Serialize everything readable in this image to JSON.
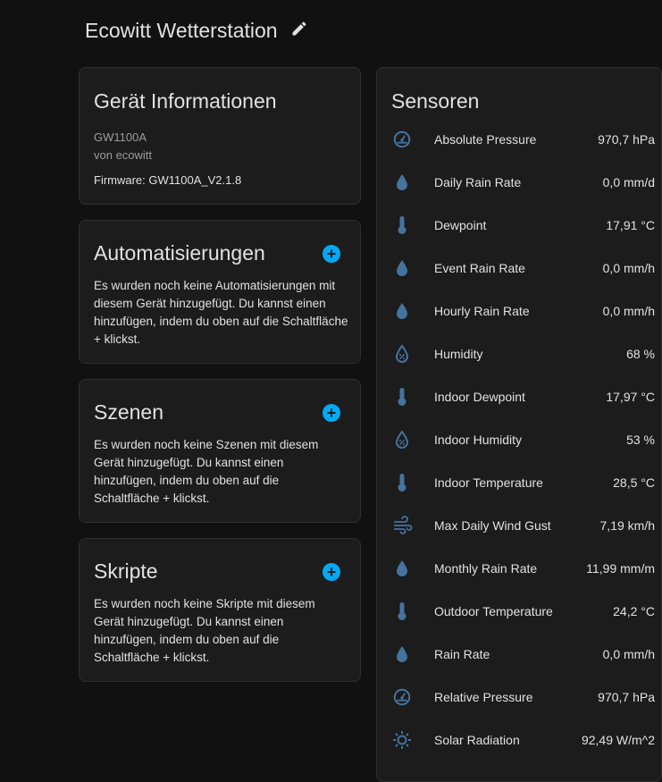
{
  "header": {
    "title": "Ecowitt Wetterstation",
    "edit_icon": "pencil-icon"
  },
  "device_info": {
    "title": "Gerät Informationen",
    "model": "GW1100A",
    "manufacturer": "von ecowitt",
    "firmware": "Firmware: GW1100A_V2.1.8"
  },
  "automations": {
    "title": "Automatisierungen",
    "text": "Es wurden noch keine Automatisierungen mit diesem Gerät hinzugefügt. Du kannst einen hinzufügen, indem du oben auf die Schaltfläche + klickst.",
    "add": "+"
  },
  "scenes": {
    "title": "Szenen",
    "text": "Es wurden noch keine Szenen mit diesem Gerät hinzugefügt. Du kannst einen hinzufügen, indem du oben auf die Schaltfläche + klickst.",
    "add": "+"
  },
  "scripts": {
    "title": "Skripte",
    "text": "Es wurden noch keine Skripte mit diesem Gerät hinzugefügt. Du kannst einen hinzufügen, indem du oben auf die Schaltfläche + klickst.",
    "add": "+"
  },
  "sensors": {
    "title": "Sensoren",
    "icon_color": "#44739e",
    "items": [
      {
        "name": "Absolute Pressure",
        "value": "970,7 hPa",
        "icon": "gauge"
      },
      {
        "name": "Daily Rain Rate",
        "value": "0,0 mm/d",
        "icon": "water"
      },
      {
        "name": "Dewpoint",
        "value": "17,91 °C",
        "icon": "thermometer"
      },
      {
        "name": "Event Rain Rate",
        "value": "0,0 mm/h",
        "icon": "water"
      },
      {
        "name": "Hourly Rain Rate",
        "value": "0,0 mm/h",
        "icon": "water"
      },
      {
        "name": "Humidity",
        "value": "68 %",
        "icon": "water-percent"
      },
      {
        "name": "Indoor Dewpoint",
        "value": "17,97 °C",
        "icon": "thermometer"
      },
      {
        "name": "Indoor Humidity",
        "value": "53 %",
        "icon": "water-percent"
      },
      {
        "name": "Indoor Temperature",
        "value": "28,5 °C",
        "icon": "thermometer"
      },
      {
        "name": "Max Daily Wind Gust",
        "value": "7,19 km/h",
        "icon": "weather-windy"
      },
      {
        "name": "Monthly Rain Rate",
        "value": "11,99 mm/m",
        "icon": "water"
      },
      {
        "name": "Outdoor Temperature",
        "value": "24,2 °C",
        "icon": "thermometer"
      },
      {
        "name": "Rain Rate",
        "value": "0,0 mm/h",
        "icon": "water"
      },
      {
        "name": "Relative Pressure",
        "value": "970,7 hPa",
        "icon": "gauge"
      },
      {
        "name": "Solar Radiation",
        "value": "92,49 W/m^2",
        "icon": "sun"
      }
    ]
  }
}
